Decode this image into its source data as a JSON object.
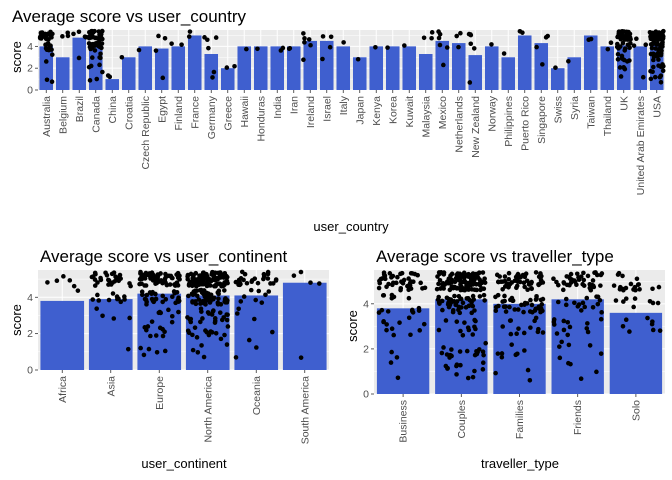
{
  "chart_data": [
    {
      "type": "bar",
      "title": "Average  score  vs  user_country",
      "xlabel": "user_country",
      "ylabel": "score",
      "ylim": [
        0,
        5.5
      ],
      "yticks": [
        0,
        2,
        4
      ],
      "bar_color": "#3f5fcf",
      "panel_bg": "#ebebeb",
      "grid_color": "#ffffff",
      "grid": true,
      "categories": [
        "Australia",
        "Belgium",
        "Brazil",
        "Canada",
        "China",
        "Croatia",
        "Czech Republic",
        "Egypt",
        "Finland",
        "France",
        "Germany",
        "Greece",
        "Hawaii",
        "Honduras",
        "India",
        "Iran",
        "Ireland",
        "Israel",
        "Italy",
        "Japan",
        "Kenya",
        "Korea",
        "Kuwait",
        "Malaysia",
        "Mexico",
        "Netherlands",
        "New Zealand",
        "Norway",
        "Philippines",
        "Puerto Rico",
        "Singapore",
        "Swiss",
        "Syria",
        "Taiwan",
        "Thailand",
        "UK",
        "United Arab Emirates",
        "USA"
      ],
      "values": [
        4.0,
        3.0,
        4.8,
        4.3,
        1.0,
        3.0,
        4.0,
        3.8,
        4.0,
        5.0,
        3.3,
        2.0,
        4.0,
        4.0,
        4.0,
        4.0,
        4.5,
        4.5,
        4.0,
        3.0,
        4.0,
        4.0,
        4.0,
        3.3,
        4.5,
        4.3,
        3.2,
        4.0,
        3.0,
        5.0,
        4.3,
        2.0,
        3.0,
        5.0,
        4.0,
        4.1,
        4.0,
        4.1
      ],
      "points_per_category": [
        35,
        3,
        5,
        60,
        2,
        1,
        1,
        4,
        2,
        2,
        6,
        2,
        1,
        1,
        2,
        2,
        6,
        4,
        1,
        1,
        1,
        1,
        1,
        3,
        6,
        3,
        6,
        1,
        1,
        2,
        4,
        1,
        1,
        2,
        2,
        60,
        4,
        90
      ]
    },
    {
      "type": "bar",
      "title": "Average  score  vs  user_continent",
      "xlabel": "user_continent",
      "ylabel": "score",
      "ylim": [
        0,
        5.5
      ],
      "yticks": [
        0,
        2,
        4
      ],
      "bar_color": "#3f5fcf",
      "panel_bg": "#ebebeb",
      "grid_color": "#ffffff",
      "grid": true,
      "categories": [
        "Africa",
        "Asia",
        "Europe",
        "North America",
        "Oceania",
        "South America"
      ],
      "values": [
        3.8,
        3.9,
        4.2,
        4.1,
        4.1,
        4.8
      ],
      "points_per_category": [
        6,
        45,
        110,
        200,
        40,
        5
      ]
    },
    {
      "type": "bar",
      "title": "Average  score  vs  traveller_type",
      "xlabel": "traveller_type",
      "ylabel": "score",
      "ylim": [
        0,
        5.5
      ],
      "yticks": [
        0,
        2,
        4
      ],
      "bar_color": "#3f5fcf",
      "panel_bg": "#ebebeb",
      "grid_color": "#ffffff",
      "grid": true,
      "categories": [
        "Business",
        "Couples",
        "Families",
        "Friends",
        "Solo"
      ],
      "values": [
        3.8,
        4.2,
        4.0,
        4.2,
        3.6
      ],
      "points_per_category": [
        70,
        200,
        120,
        80,
        35
      ]
    }
  ]
}
